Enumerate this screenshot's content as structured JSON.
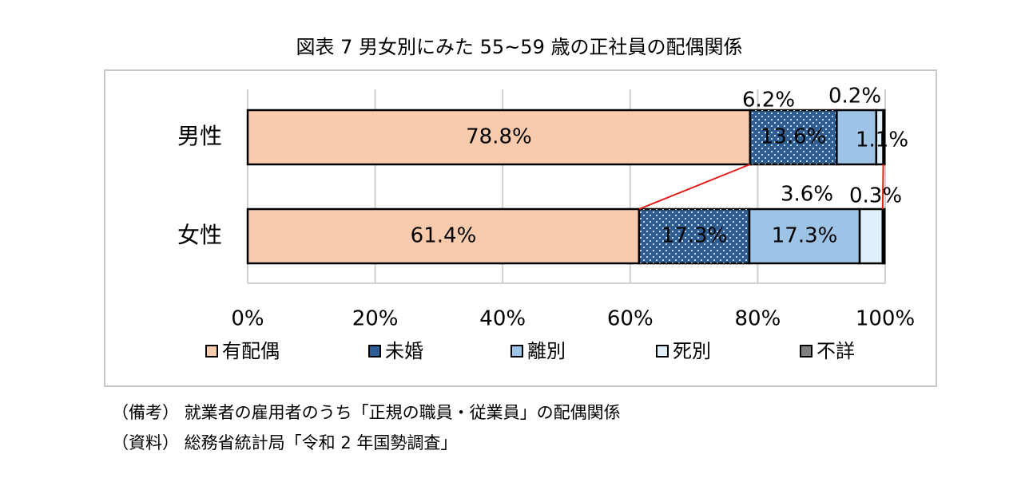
{
  "chart_data": {
    "type": "stacked_barh",
    "title": "図表 7  男女別にみた 55~59 歳の正社員の配偶関係",
    "categories": [
      "男性",
      "女性"
    ],
    "series": [
      {
        "name": "有配偶",
        "color": "#f8cbad",
        "values": [
          78.8,
          61.4
        ],
        "value_labels": [
          "78.8%",
          "61.4%"
        ]
      },
      {
        "name": "未婚",
        "color": "#2e5d93",
        "values": [
          13.6,
          17.3
        ],
        "value_labels": [
          "13.6%",
          "17.3%"
        ]
      },
      {
        "name": "離別",
        "color": "#9dc3e6",
        "values": [
          6.2,
          17.3
        ],
        "value_labels": [
          "6.2%",
          "17.3%"
        ]
      },
      {
        "name": "死別",
        "color": "#ddf0fb",
        "values": [
          1.1,
          3.6
        ],
        "value_labels": [
          "1.1%",
          "3.6%"
        ]
      },
      {
        "name": "不詳",
        "color": "#7f7f7f",
        "values": [
          0.2,
          0.3
        ],
        "value_labels": [
          "0.2%",
          "0.3%"
        ]
      }
    ],
    "xlim": [
      0,
      100
    ],
    "xticks": [
      {
        "value": 0,
        "label": "0%"
      },
      {
        "value": 20,
        "label": "20%"
      },
      {
        "value": 40,
        "label": "40%"
      },
      {
        "value": 60,
        "label": "60%"
      },
      {
        "value": 80,
        "label": "80%"
      },
      {
        "value": 100,
        "label": "100%"
      }
    ],
    "grid": true,
    "legend": "bottom",
    "series_line_color": "#e0201b"
  },
  "notes": [
    "（備考）  就業者の雇用者のうち「正規の職員・従業員」の配偶関係",
    "（資料）  総務省統計局「令和 2 年国勢調査」"
  ]
}
